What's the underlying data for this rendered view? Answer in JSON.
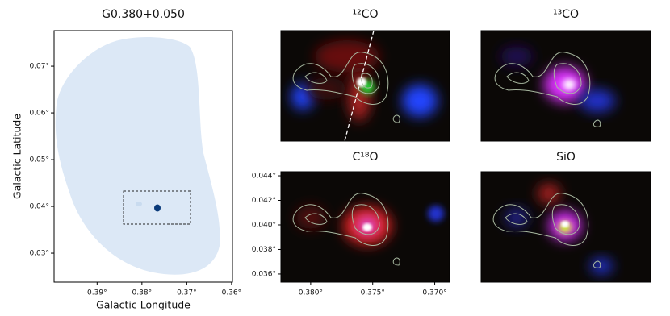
{
  "chart_data": [
    {
      "type": "image",
      "title": "G0.380+0.050",
      "xlabel": "Galactic Longitude",
      "ylabel": "Galactic Latitude",
      "xlim": [
        0.3996,
        0.3598
      ],
      "ylim": [
        0.0238,
        0.0776
      ],
      "xticks": [
        {
          "value": 0.39,
          "label": "0.39°"
        },
        {
          "value": 0.38,
          "label": "0.38°"
        },
        {
          "value": 0.37,
          "label": "0.37°"
        },
        {
          "value": 0.36,
          "label": "0.36°"
        }
      ],
      "yticks": [
        {
          "value": 0.03,
          "label": "0.03°"
        },
        {
          "value": 0.04,
          "label": "0.04°"
        },
        {
          "value": 0.05,
          "label": "0.05°"
        },
        {
          "value": 0.06,
          "label": "0.06°"
        },
        {
          "value": 0.07,
          "label": "0.07°"
        }
      ]
    },
    {
      "type": "image",
      "title": "¹²CO"
    },
    {
      "type": "image",
      "title": "¹³CO"
    },
    {
      "type": "image",
      "title": "C¹⁸O",
      "xlim": [
        0.3824,
        0.3688
      ],
      "ylim": [
        0.03534,
        0.04433
      ],
      "xticks": [
        {
          "value": 0.38,
          "label": "0.380°"
        },
        {
          "value": 0.375,
          "label": "0.375°"
        },
        {
          "value": 0.37,
          "label": "0.370°"
        }
      ],
      "yticks": [
        {
          "value": 0.036,
          "label": "0.036°"
        },
        {
          "value": 0.038,
          "label": "0.038°"
        },
        {
          "value": 0.04,
          "label": "0.040°"
        },
        {
          "value": 0.042,
          "label": "0.042°"
        },
        {
          "value": 0.044,
          "label": "0.044°"
        }
      ]
    },
    {
      "type": "image",
      "title": "SiO"
    }
  ]
}
